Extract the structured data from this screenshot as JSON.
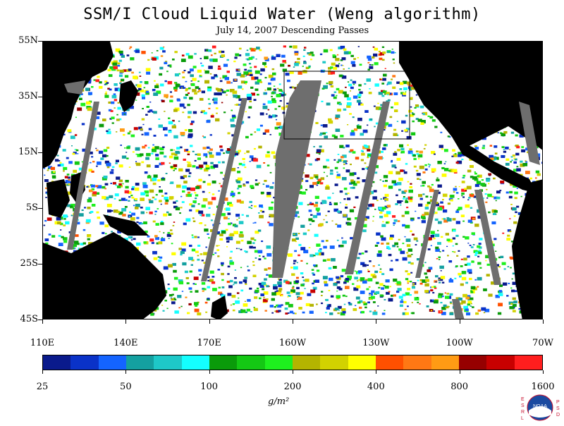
{
  "title": "SSM/I Cloud Liquid Water (Weng algorithm)",
  "subtitle": "July 14, 2007  Descending Passes",
  "map": {
    "lat_labels": [
      "55N",
      "35N",
      "15N",
      "5S",
      "25S",
      "45S"
    ],
    "lon_labels": [
      "110E",
      "140E",
      "170E",
      "160W",
      "130W",
      "100W",
      "70W"
    ],
    "land_color": "#000000",
    "no_data_color": "#6e6e6e",
    "clear_color": "#ffffff"
  },
  "colorbar": {
    "labels": [
      "25",
      "50",
      "100",
      "200",
      "400",
      "800",
      "1600"
    ],
    "units": "g/m²",
    "colors": [
      "#0a1a8c",
      "#0a32c8",
      "#1464ff",
      "#14a0a0",
      "#1ec8c8",
      "#14ffff",
      "#0a9b0a",
      "#14c814",
      "#1ef01e",
      "#b4b400",
      "#d2d200",
      "#ffff00",
      "#ff5000",
      "#ff7814",
      "#ff9b14",
      "#960000",
      "#c80000",
      "#ff1e1e"
    ]
  },
  "logo": {
    "left_text": "ESRL",
    "right_text": "PSD",
    "badge": "NOAA"
  }
}
